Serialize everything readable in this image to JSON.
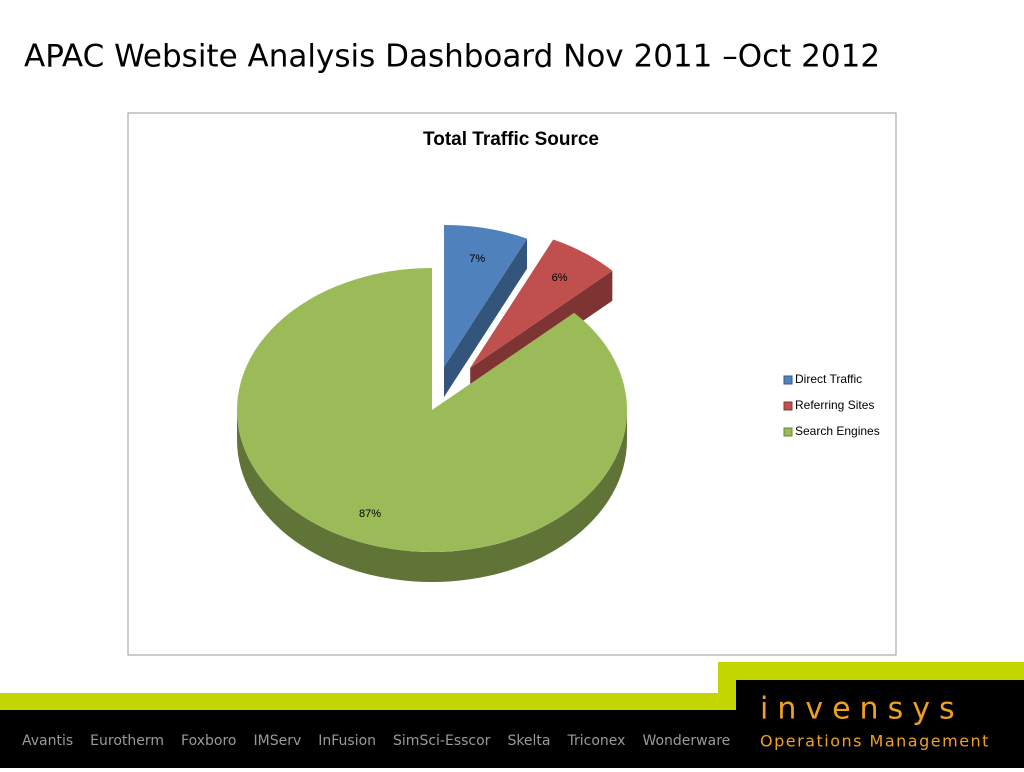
{
  "title": "APAC Website Analysis Dashboard Nov 2011 –Oct 2012",
  "chart_data": {
    "type": "pie",
    "title": "Total Traffic Source",
    "categories": [
      "Direct Traffic",
      "Referring Sites",
      "Search Engines"
    ],
    "values": [
      7,
      6,
      87
    ],
    "value_labels": [
      "7%",
      "6%",
      "87%"
    ],
    "colors": [
      "#4f81bd",
      "#c0504d",
      "#9bbb59"
    ],
    "legend": "right"
  },
  "footer": {
    "brands": [
      "Avantis",
      "Eurotherm",
      "Foxboro",
      "IMServ",
      "InFusion",
      "SimSci-Esscor",
      "Skelta",
      "Triconex",
      "Wonderware"
    ],
    "logo": "invensys",
    "tagline": "Operations Management"
  }
}
